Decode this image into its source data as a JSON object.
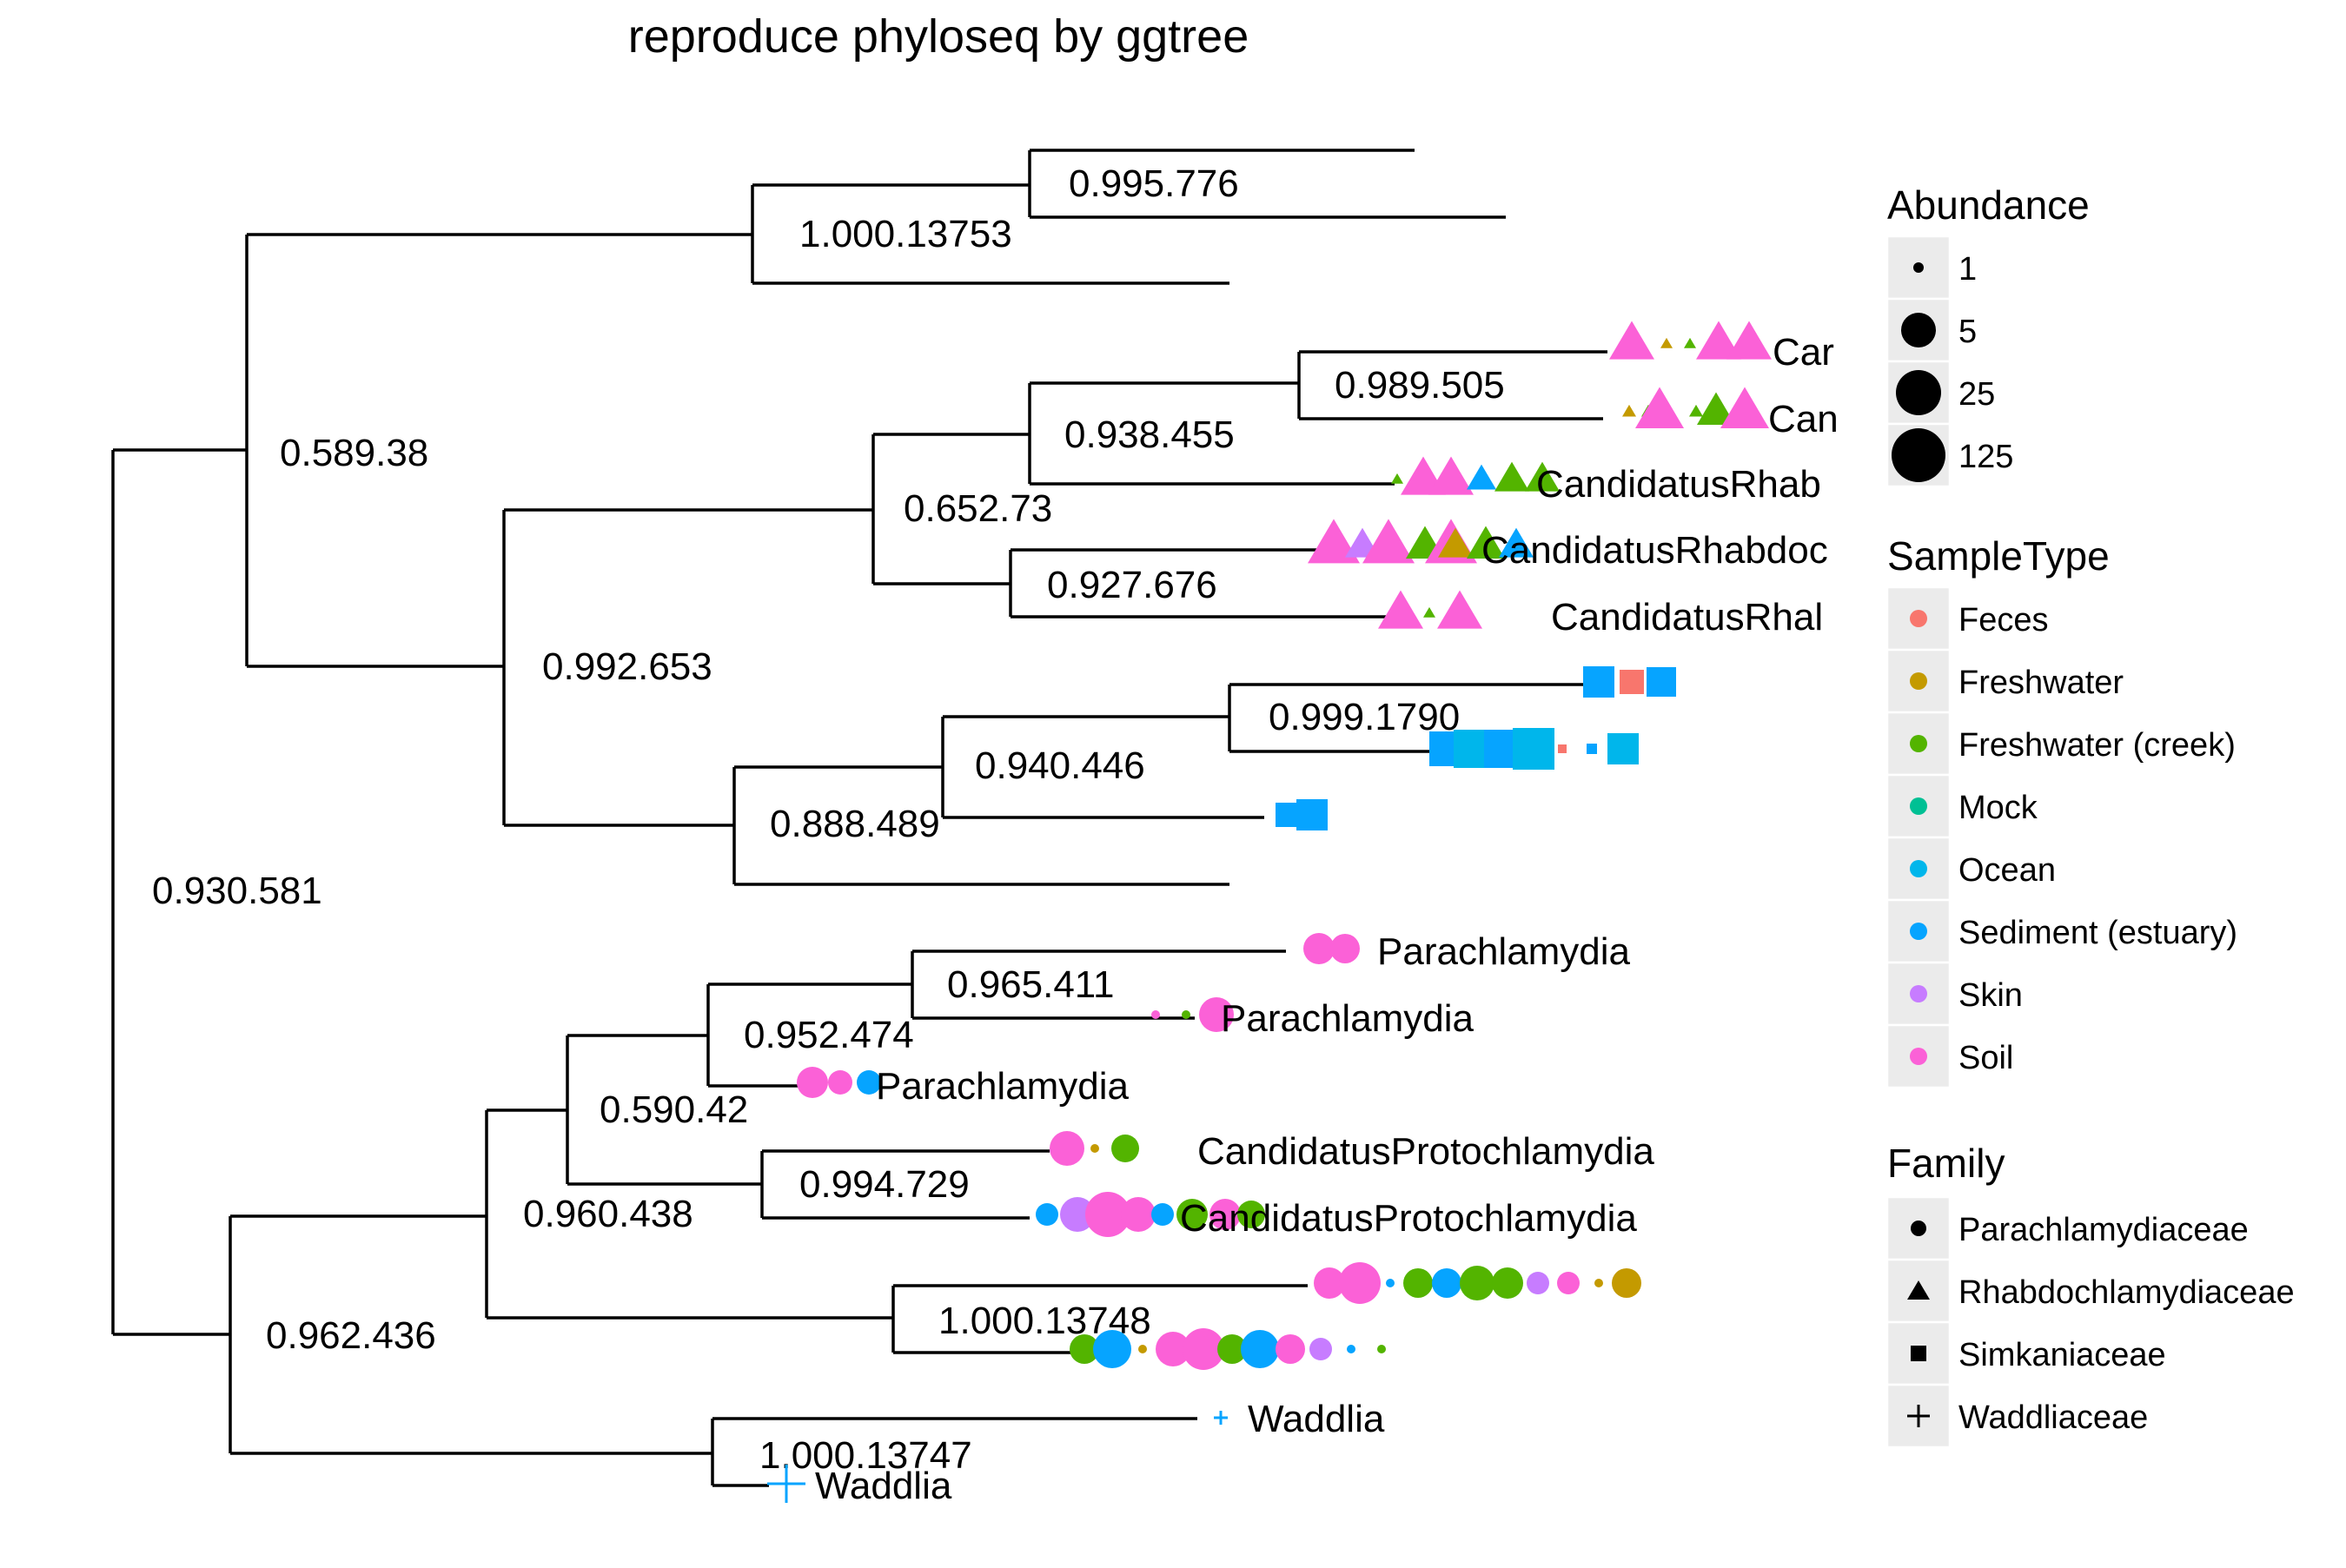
{
  "title": "reproduce phyloseq by ggtree",
  "colors": {
    "Feces": "#F8766D",
    "Freshwater": "#C49A00",
    "Freshwater (creek)": "#53B400",
    "Mock": "#00C094",
    "Ocean": "#00B6EB",
    "Sediment (estuary)": "#06A4FF",
    "Skin": "#C77CFF",
    "Soil": "#FB61D7"
  },
  "tree": {
    "node_labels": [
      "0.995.776",
      "1.000.13753",
      "0.589.38",
      "0.989.505",
      "0.938.455",
      "0.652.73",
      "0.927.676",
      "0.992.653",
      "0.999.1790",
      "0.940.446",
      "0.888.489",
      "0.930.581",
      "0.965.411",
      "0.952.474",
      "0.590.42",
      "0.994.729",
      "0.960.438",
      "1.000.13748",
      "0.962.436",
      "1.000.13747"
    ],
    "tip_labels": [
      "Car",
      "Can",
      "CandidatusRhab",
      "CandidatusRhabdoc",
      "CandidatusRhal",
      "Parachlamydia",
      "Parachlamydia",
      "Parachlamydia",
      "CandidatusProtochlamydia",
      "CandidatusProtochlamydia",
      "Waddlia",
      "Waddlia"
    ]
  },
  "legend": {
    "abundance": {
      "title": "Abundance",
      "items": [
        "1",
        "5",
        "25",
        "125"
      ]
    },
    "sample_type": {
      "title": "SampleType",
      "items": [
        "Feces",
        "Freshwater",
        "Freshwater (creek)",
        "Mock",
        "Ocean",
        "Sediment (estuary)",
        "Skin",
        "Soil"
      ]
    },
    "family": {
      "title": "Family",
      "items": [
        {
          "label": "Parachlamydiaceae",
          "shape": "circle"
        },
        {
          "label": "Rhabdochlamydiaceae",
          "shape": "triangle"
        },
        {
          "label": "Simkaniaceae",
          "shape": "square"
        },
        {
          "label": "Waddliaceae",
          "shape": "plus"
        }
      ]
    }
  }
}
